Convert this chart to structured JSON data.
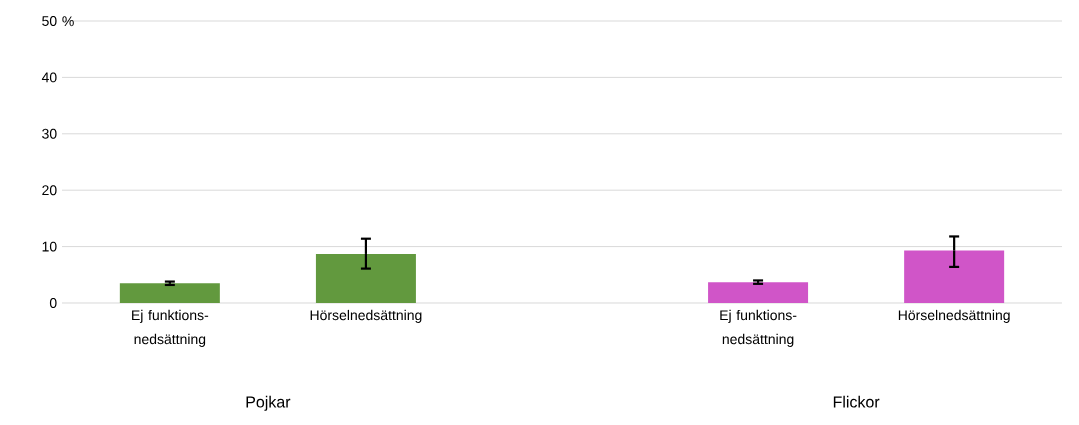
{
  "chart_data": {
    "type": "bar",
    "ylabel": "%",
    "categories": [
      "Ej funktions-nedsättning",
      "Hörselnedsättning",
      null,
      "Ej funktions-nedsättning",
      "Hörselnedsättning"
    ],
    "values": [
      3.5,
      8.7,
      null,
      3.7,
      9.3
    ],
    "colors": [
      "#62993e",
      "#62993e",
      null,
      "#d055c8",
      "#d055c8"
    ],
    "errors": [
      [
        3.2,
        3.8
      ],
      [
        6.1,
        11.4
      ],
      null,
      [
        3.4,
        4.0
      ],
      [
        6.4,
        11.8
      ]
    ],
    "annotations": [
      "Pojkar",
      "Flickor"
    ],
    "ylim": [
      0,
      50
    ],
    "yticks": [
      0,
      10,
      20,
      30,
      40,
      50
    ],
    "grid": "y",
    "legend": false
  }
}
